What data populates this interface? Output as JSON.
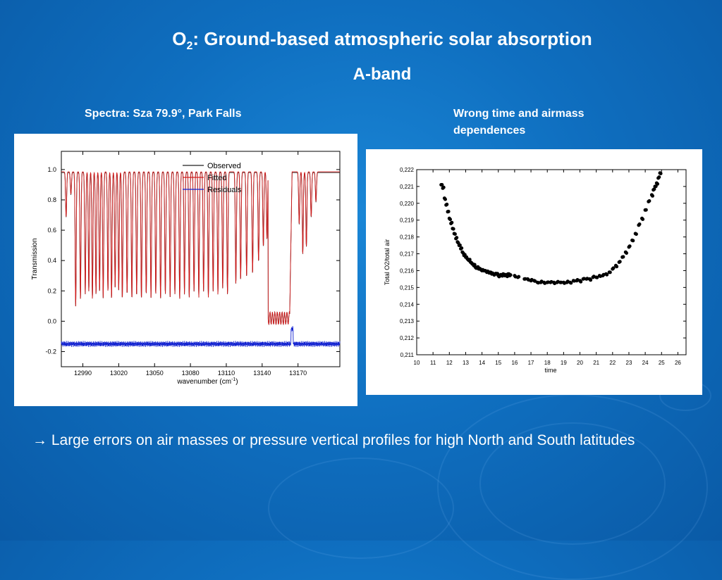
{
  "slide": {
    "title_main": "O",
    "title_sub": "2",
    "title_rest": ": Ground-based atmospheric solar absorption",
    "subtitle": "A-band",
    "caption_left": "Spectra: Sza 79.9°, Park Falls",
    "caption_right": "Wrong time and airmass dependences",
    "conclusion": "→ Large errors on air masses or pressure vertical profiles for high North and South latitudes"
  },
  "chart_data": [
    {
      "type": "line",
      "title": "",
      "xlabel": "wavenumber (cm-1)",
      "xlabel_main": "wavenumber (cm",
      "xlabel_sup": "-1",
      "xlabel_close": ")",
      "ylabel": "Transmission",
      "xlim": [
        12972,
        13205
      ],
      "ylim": [
        -0.3,
        1.12
      ],
      "xticks": [
        12990,
        13020,
        13050,
        13080,
        13110,
        13140,
        13170
      ],
      "yticks": [
        -0.2,
        0.0,
        0.2,
        0.4,
        0.6,
        0.8,
        1.0
      ],
      "ytick_labels": [
        "-0.2",
        "0.0",
        "0.2",
        "0.4",
        "0.6",
        "0.8",
        "1.0"
      ],
      "legend_position": "top-right",
      "series": [
        {
          "name": "Observed",
          "color": "#222222"
        },
        {
          "name": "Fitted",
          "color": "#d41a1a"
        },
        {
          "name": "Residuals",
          "color": "#1020d0"
        }
      ],
      "continuum": 0.98,
      "residual_baseline": -0.15,
      "band_gap": [
        13145,
        13165
      ],
      "absorption_lines": [
        [
          12976,
          0.3
        ],
        [
          12980,
          0.15
        ],
        [
          12984,
          0.9
        ],
        [
          12988,
          0.85
        ],
        [
          12992,
          0.82
        ],
        [
          12995,
          0.8
        ],
        [
          12998,
          0.85
        ],
        [
          13001,
          0.82
        ],
        [
          13004,
          0.8
        ],
        [
          13007,
          0.85
        ],
        [
          13011,
          0.8
        ],
        [
          13014,
          0.85
        ],
        [
          13017,
          0.78
        ],
        [
          13020,
          0.8
        ],
        [
          13023,
          0.85
        ],
        [
          13027,
          0.82
        ],
        [
          13031,
          0.85
        ],
        [
          13035,
          0.83
        ],
        [
          13039,
          0.85
        ],
        [
          13043,
          0.82
        ],
        [
          13047,
          0.85
        ],
        [
          13051,
          0.82
        ],
        [
          13055,
          0.85
        ],
        [
          13059,
          0.82
        ],
        [
          13063,
          0.84
        ],
        [
          13067,
          0.82
        ],
        [
          13071,
          0.85
        ],
        [
          13075,
          0.82
        ],
        [
          13079,
          0.84
        ],
        [
          13083,
          0.8
        ],
        [
          13087,
          0.84
        ],
        [
          13091,
          0.8
        ],
        [
          13095,
          0.84
        ],
        [
          13099,
          0.8
        ],
        [
          13103,
          0.82
        ],
        [
          13107,
          0.78
        ],
        [
          13111,
          0.82
        ],
        [
          13118,
          0.75
        ],
        [
          13122,
          0.72
        ],
        [
          13127,
          0.7
        ],
        [
          13132,
          0.68
        ],
        [
          13137,
          0.6
        ],
        [
          13141,
          0.5
        ],
        [
          13144,
          0.45
        ],
        [
          13171,
          0.35
        ],
        [
          13174,
          0.55
        ],
        [
          13177,
          0.5
        ],
        [
          13181,
          0.3
        ],
        [
          13185,
          0.2
        ]
      ]
    },
    {
      "type": "scatter",
      "title": "",
      "xlabel": "time",
      "ylabel": "Total O2/total air",
      "xlim": [
        10,
        26.5
      ],
      "ylim": [
        0.211,
        0.222
      ],
      "xticks": [
        10,
        11,
        12,
        13,
        14,
        15,
        16,
        17,
        18,
        19,
        20,
        21,
        22,
        23,
        24,
        25,
        26
      ],
      "yticks": [
        0.211,
        0.212,
        0.213,
        0.214,
        0.215,
        0.216,
        0.217,
        0.218,
        0.219,
        0.22,
        0.221,
        0.222
      ],
      "ytick_labels": [
        "0,211",
        "0,212",
        "0,213",
        "0,214",
        "0,215",
        "0,216",
        "0,217",
        "0,218",
        "0,219",
        "0,220",
        "0,221",
        "0,222"
      ],
      "x": [
        11.5,
        11.6,
        11.7,
        11.8,
        11.9,
        12.0,
        12.1,
        12.2,
        12.3,
        12.4,
        12.5,
        12.6,
        12.7,
        12.8,
        12.9,
        13.0,
        13.1,
        13.2,
        13.3,
        13.4,
        13.5,
        13.6,
        13.7,
        13.8,
        13.9,
        14.0,
        14.1,
        14.2,
        14.3,
        14.4,
        14.5,
        14.6,
        14.7,
        14.8,
        14.9,
        15.0,
        15.1,
        15.2,
        15.3,
        15.4,
        15.5,
        15.6,
        15.7,
        16.0,
        16.2,
        16.6,
        16.8,
        17.0,
        17.2,
        17.4,
        17.6,
        17.8,
        18.0,
        18.2,
        18.4,
        18.6,
        18.8,
        19.0,
        19.2,
        19.4,
        19.6,
        19.8,
        20.0,
        20.2,
        20.4,
        20.6,
        20.8,
        21.0,
        21.2,
        21.4,
        21.6,
        21.8,
        22.0,
        22.2,
        22.4,
        22.6,
        22.8,
        23.0,
        23.2,
        23.4,
        23.6,
        23.8,
        24.0,
        24.2,
        24.4,
        24.5,
        24.6,
        24.7,
        24.8,
        24.9,
        25.0
      ],
      "y": [
        0.2211,
        0.2209,
        0.2203,
        0.2199,
        0.2195,
        0.2191,
        0.2188,
        0.2185,
        0.2182,
        0.2179,
        0.2177,
        0.2175,
        0.2173,
        0.2171,
        0.2169,
        0.2168,
        0.2167,
        0.2166,
        0.2165,
        0.2164,
        0.2163,
        0.2162,
        0.2162,
        0.2161,
        0.2161,
        0.216,
        0.216,
        0.216,
        0.2159,
        0.2159,
        0.2159,
        0.2158,
        0.2158,
        0.2158,
        0.2158,
        0.2157,
        0.2157,
        0.2157,
        0.2158,
        0.2157,
        0.2157,
        0.2158,
        0.2157,
        0.2157,
        0.2156,
        0.2155,
        0.2155,
        0.2154,
        0.2154,
        0.2153,
        0.2153,
        0.2153,
        0.2153,
        0.2153,
        0.2153,
        0.2153,
        0.2153,
        0.2153,
        0.2153,
        0.2153,
        0.2154,
        0.2154,
        0.2154,
        0.2155,
        0.2155,
        0.2155,
        0.2156,
        0.2156,
        0.2157,
        0.2157,
        0.2158,
        0.2159,
        0.2161,
        0.2163,
        0.2165,
        0.2168,
        0.2171,
        0.2174,
        0.2178,
        0.2182,
        0.2187,
        0.2191,
        0.2196,
        0.2201,
        0.2205,
        0.2208,
        0.221,
        0.2212,
        0.2215,
        0.2218,
        0.2221
      ],
      "marker_color": "#000000"
    }
  ]
}
